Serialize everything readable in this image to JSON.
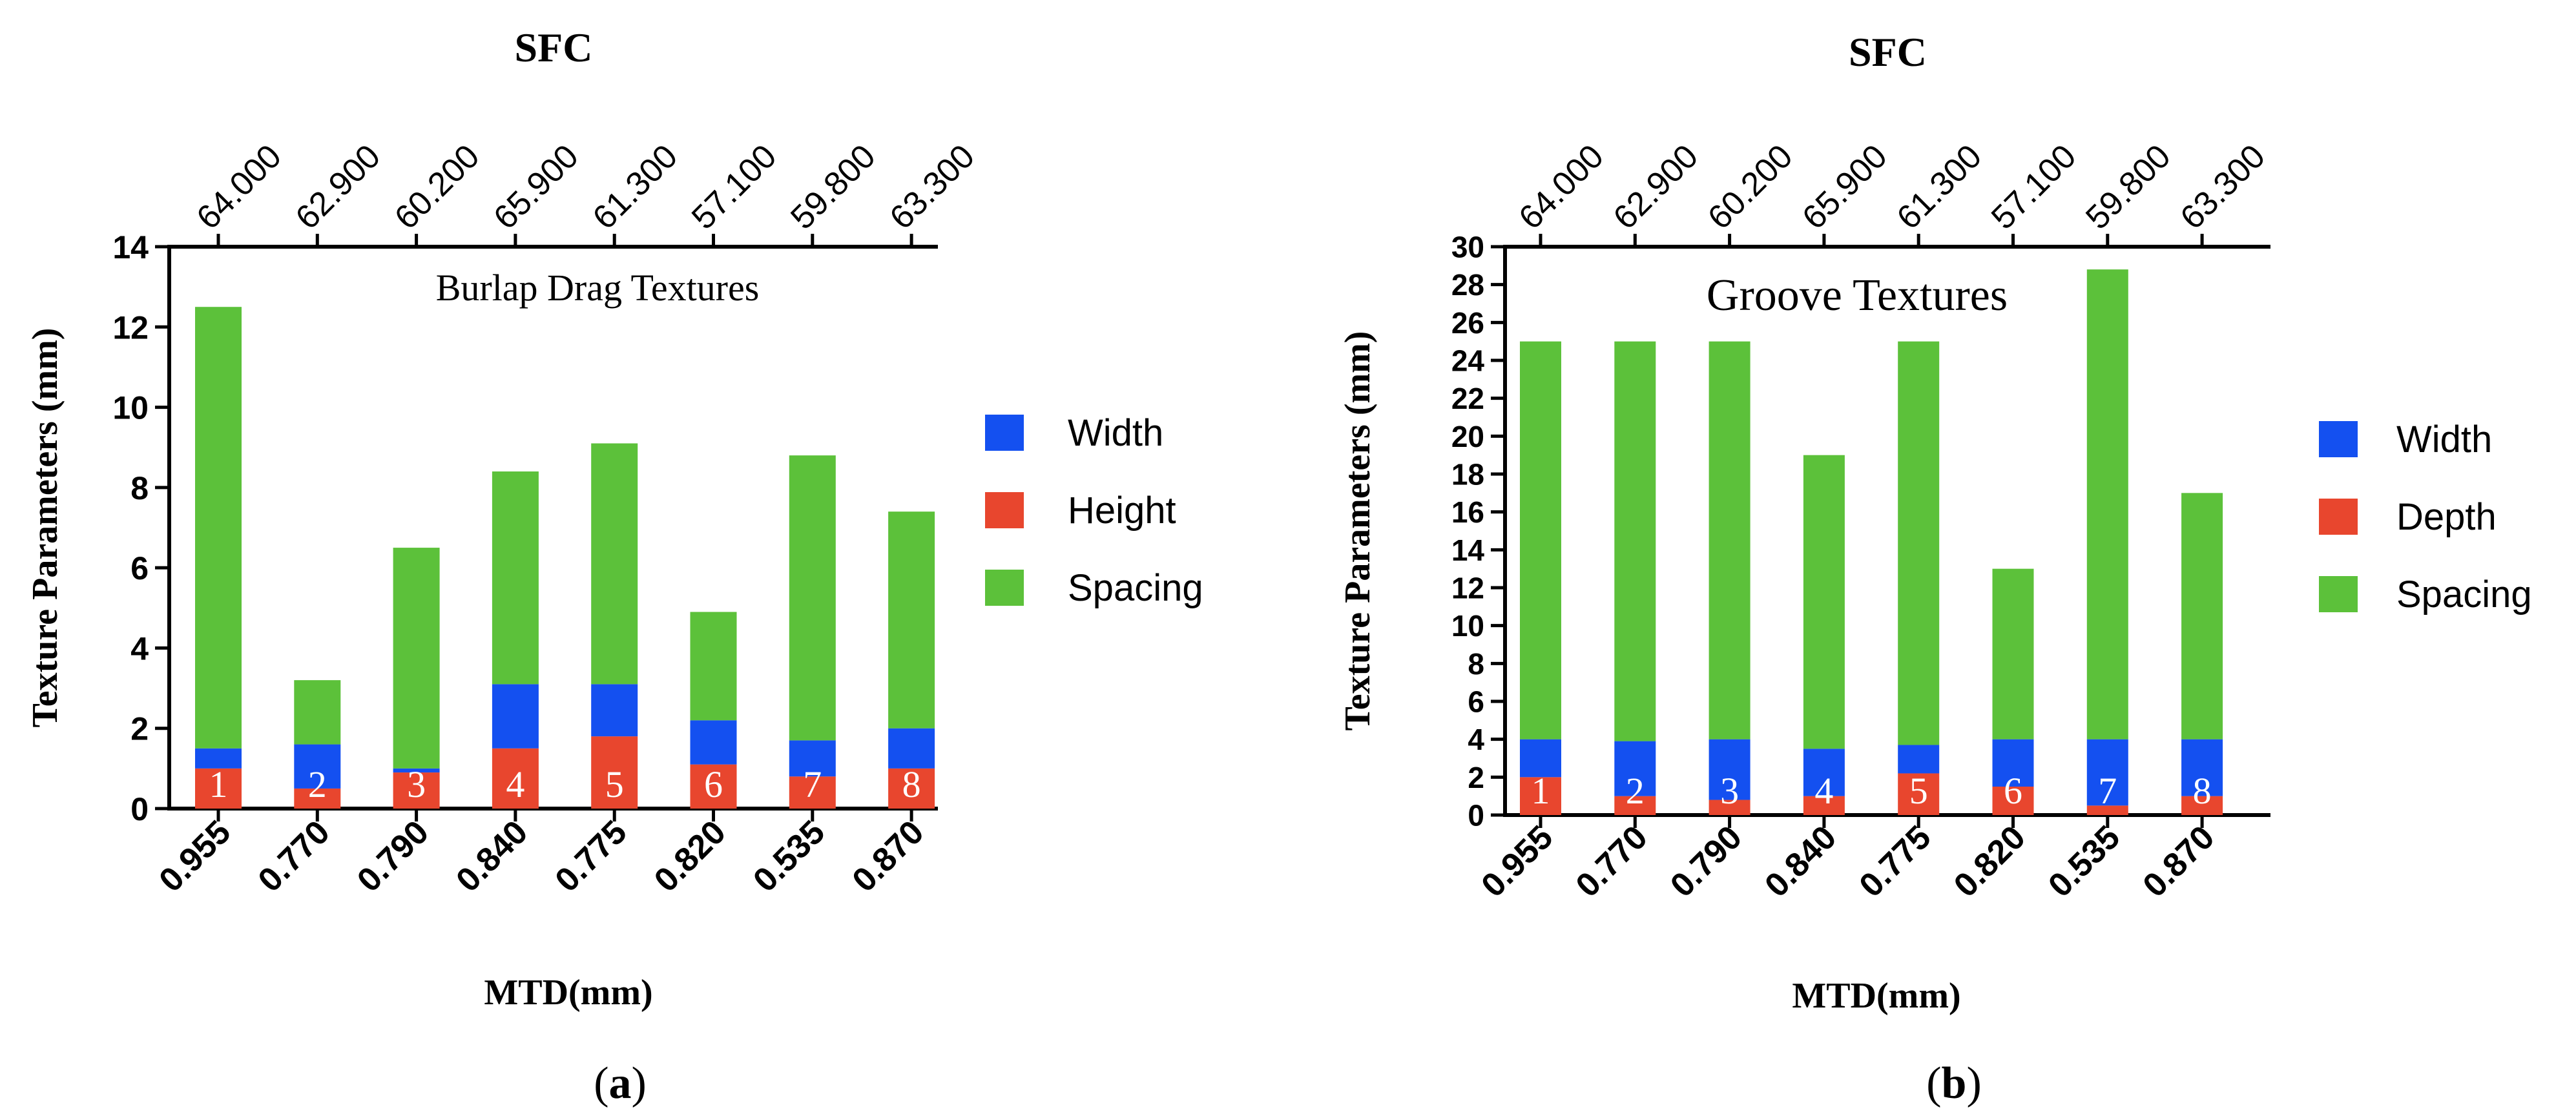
{
  "chart_data": [
    {
      "type": "bar",
      "stacked": true,
      "panel_label": "(a)",
      "title": "Burlap Drag Textures",
      "top_axis_title": "SFC",
      "top_tick_labels": [
        "64.000",
        "62.900",
        "60.200",
        "65.900",
        "61.300",
        "57.100",
        "59.800",
        "63.300"
      ],
      "xlabel": "MTD(mm)",
      "ylabel": "Texture Parameters (mm)",
      "categories": [
        "0.955",
        "0.770",
        "0.790",
        "0.840",
        "0.775",
        "0.820",
        "0.535",
        "0.870"
      ],
      "bar_labels": [
        "1",
        "2",
        "3",
        "4",
        "5",
        "6",
        "7",
        "8"
      ],
      "ylim": [
        0,
        14
      ],
      "yticks": [
        0,
        2,
        4,
        6,
        8,
        10,
        12,
        14
      ],
      "legend_position": "right",
      "series": [
        {
          "name": "Height",
          "color": "#e8462e",
          "values": [
            1.0,
            0.5,
            0.9,
            1.5,
            1.8,
            1.1,
            0.8,
            1.0
          ]
        },
        {
          "name": "Width",
          "color": "#1450f0",
          "values": [
            0.5,
            1.1,
            0.1,
            1.6,
            1.3,
            1.1,
            0.9,
            1.0
          ]
        },
        {
          "name": "Spacing",
          "color": "#5cc13a",
          "values": [
            11.0,
            1.6,
            5.5,
            5.3,
            6.0,
            2.7,
            7.1,
            5.4
          ]
        }
      ],
      "legend_order": [
        "Width",
        "Height",
        "Spacing"
      ]
    },
    {
      "type": "bar",
      "stacked": true,
      "panel_label": "(b)",
      "title": "Groove Textures",
      "top_axis_title": "SFC",
      "top_tick_labels": [
        "64.000",
        "62.900",
        "60.200",
        "65.900",
        "61.300",
        "57.100",
        "59.800",
        "63.300"
      ],
      "xlabel": "MTD(mm)",
      "ylabel": "Texture Parameters (mm)",
      "categories": [
        "0.955",
        "0.770",
        "0.790",
        "0.840",
        "0.775",
        "0.820",
        "0.535",
        "0.870"
      ],
      "bar_labels": [
        "1",
        "2",
        "3",
        "4",
        "5",
        "6",
        "7",
        "8"
      ],
      "ylim": [
        0,
        30
      ],
      "yticks": [
        0,
        2,
        4,
        6,
        8,
        10,
        12,
        14,
        16,
        18,
        20,
        22,
        24,
        26,
        28,
        30
      ],
      "legend_position": "right",
      "series": [
        {
          "name": "Depth",
          "color": "#e8462e",
          "values": [
            2.0,
            1.0,
            0.8,
            1.0,
            2.2,
            1.5,
            0.5,
            1.0
          ]
        },
        {
          "name": "Width",
          "color": "#1450f0",
          "values": [
            2.0,
            2.9,
            3.2,
            2.5,
            1.5,
            2.5,
            3.5,
            3.0
          ]
        },
        {
          "name": "Spacing",
          "color": "#5cc13a",
          "values": [
            21.0,
            21.1,
            21.0,
            15.5,
            21.3,
            9.0,
            24.8,
            13.0
          ]
        }
      ],
      "legend_order": [
        "Width",
        "Depth",
        "Spacing"
      ]
    }
  ]
}
